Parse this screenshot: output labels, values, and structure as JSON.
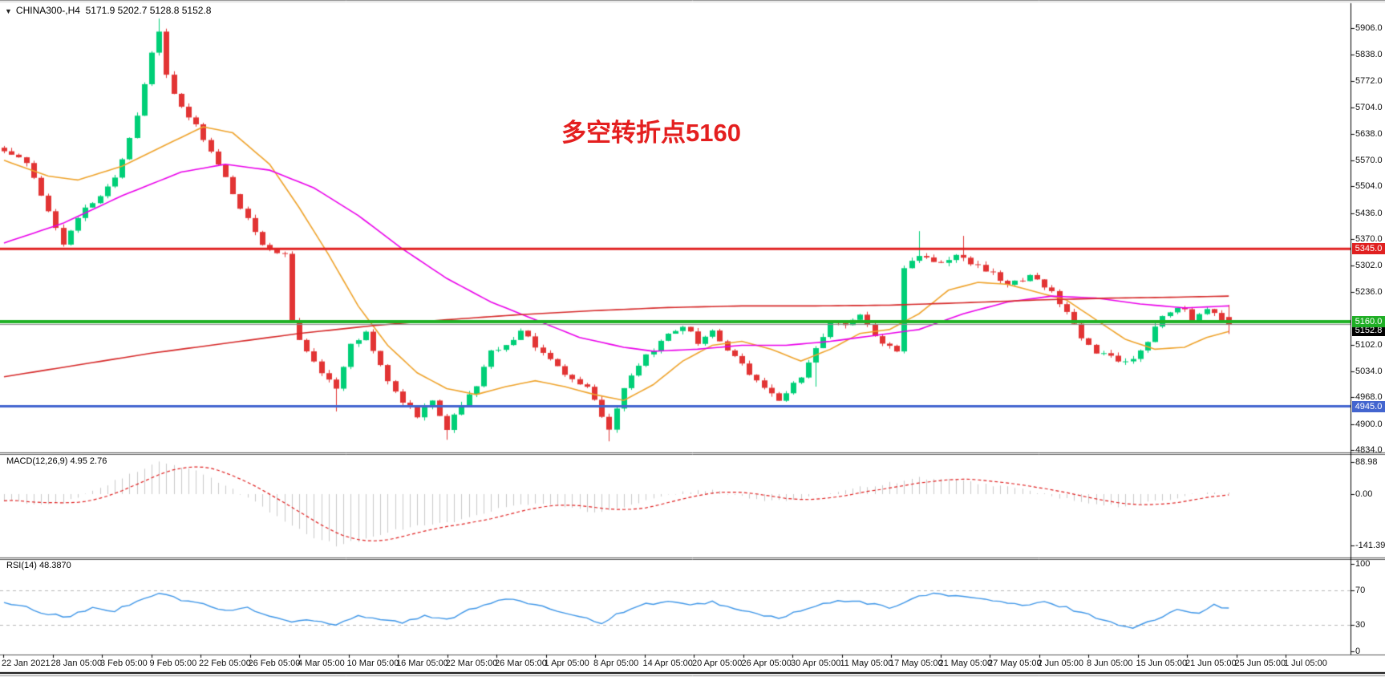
{
  "header": {
    "dropdown_icon": "▼",
    "symbol_title": "CHINA300-,H4",
    "ohlc_text": "5171.9 5202.7 5128.8 5152.8"
  },
  "annotation": {
    "text": "多空转折点5160",
    "color": "#e41f1f"
  },
  "pane_labels": {
    "macd_label": "MACD(12,26,9) 4.95 2.76",
    "rsi_label": "RSI(14) 48.3870"
  },
  "price_axis": {
    "ticks": [
      "5906.0",
      "5838.0",
      "5772.0",
      "5704.0",
      "5638.0",
      "5570.0",
      "5504.0",
      "5436.0",
      "5370.0",
      "5302.0",
      "5236.0",
      "5102.0",
      "5034.0",
      "4968.0",
      "4900.0",
      "4834.0"
    ],
    "boxes": [
      {
        "label": "5345.0",
        "price": 5345.0,
        "bg": "#e02020"
      },
      {
        "label": "5152.8",
        "price": 5152.8,
        "bg": "#000000"
      },
      {
        "label": "5160.0",
        "price": 5160.0,
        "bg": "#1fae25"
      },
      {
        "label": "4945.0",
        "price": 4945.0,
        "bg": "#4365cf"
      }
    ]
  },
  "macd_axis": {
    "ticks": [
      {
        "label": "88.98",
        "value": 88.98
      },
      {
        "label": "0.00",
        "value": 0
      },
      {
        "label": "-141.39",
        "value": -141.39
      }
    ]
  },
  "rsi_axis": {
    "ticks": [
      {
        "label": "100",
        "value": 100
      },
      {
        "label": "70",
        "value": 70
      },
      {
        "label": "30",
        "value": 30
      },
      {
        "label": "0",
        "value": 0
      }
    ]
  },
  "time_axis": {
    "labels": [
      "22 Jan 2021",
      "28 Jan 05:00",
      "3 Feb 05:00",
      "9 Feb 05:00",
      "22 Feb 05:00",
      "26 Feb 05:00",
      "4 Mar 05:00",
      "10 Mar 05:00",
      "16 Mar 05:00",
      "22 Mar 05:00",
      "26 Mar 05:00",
      "1 Apr 05:00",
      "8 Apr 05:00",
      "14 Apr 05:00",
      "20 Apr 05:00",
      "26 Apr 05:00",
      "30 Apr 05:00",
      "11 May 05:00",
      "17 May 05:00",
      "21 May 05:00",
      "27 May 05:00",
      "2 Jun 05:00",
      "8 Jun 05:00",
      "15 Jun 05:00",
      "21 Jun 05:00",
      "25 Jun 05:00",
      "1 Jul 05:00"
    ]
  },
  "chart_data": {
    "type": "candlestick",
    "symbol": "CHINA300-",
    "timeframe": "H4",
    "title": "CHINA300-,H4",
    "current_bar": {
      "open": 5171.9,
      "high": 5202.7,
      "low": 5128.8,
      "close": 5152.8
    },
    "bars_count": 167,
    "price_axis_top": 5906.0,
    "price_axis_bottom": 4834.0,
    "candle_colors": {
      "up": "#00cf77",
      "down": "#e23434"
    },
    "close_keyframes": [
      [
        0,
        5600
      ],
      [
        3,
        5560
      ],
      [
        5,
        5480
      ],
      [
        8,
        5360
      ],
      [
        10,
        5430
      ],
      [
        13,
        5480
      ],
      [
        15,
        5520
      ],
      [
        18,
        5680
      ],
      [
        20,
        5840
      ],
      [
        21,
        5900
      ],
      [
        22,
        5790
      ],
      [
        24,
        5700
      ],
      [
        26,
        5660
      ],
      [
        29,
        5560
      ],
      [
        32,
        5450
      ],
      [
        35,
        5360
      ],
      [
        38,
        5330
      ],
      [
        39,
        5160
      ],
      [
        41,
        5080
      ],
      [
        43,
        5030
      ],
      [
        45,
        4990
      ],
      [
        47,
        5100
      ],
      [
        49,
        5130
      ],
      [
        52,
        5010
      ],
      [
        54,
        4960
      ],
      [
        56,
        4920
      ],
      [
        58,
        4960
      ],
      [
        60,
        4880
      ],
      [
        61,
        4920
      ],
      [
        64,
        5000
      ],
      [
        66,
        5080
      ],
      [
        68,
        5100
      ],
      [
        70,
        5140
      ],
      [
        72,
        5100
      ],
      [
        74,
        5060
      ],
      [
        77,
        5010
      ],
      [
        79,
        4990
      ],
      [
        81,
        4920
      ],
      [
        82,
        4890
      ],
      [
        83,
        4940
      ],
      [
        85,
        5030
      ],
      [
        88,
        5090
      ],
      [
        90,
        5130
      ],
      [
        92,
        5150
      ],
      [
        94,
        5110
      ],
      [
        96,
        5140
      ],
      [
        98,
        5090
      ],
      [
        101,
        5030
      ],
      [
        103,
        4990
      ],
      [
        105,
        4960
      ],
      [
        108,
        5020
      ],
      [
        110,
        5090
      ],
      [
        112,
        5160
      ],
      [
        114,
        5150
      ],
      [
        116,
        5180
      ],
      [
        118,
        5120
      ],
      [
        121,
        5090
      ],
      [
        122,
        5300
      ],
      [
        124,
        5330
      ],
      [
        127,
        5310
      ],
      [
        129,
        5330
      ],
      [
        132,
        5300
      ],
      [
        134,
        5280
      ],
      [
        136,
        5250
      ],
      [
        139,
        5280
      ],
      [
        142,
        5240
      ],
      [
        144,
        5180
      ],
      [
        146,
        5120
      ],
      [
        148,
        5080
      ],
      [
        151,
        5060
      ],
      [
        153,
        5070
      ],
      [
        155,
        5110
      ],
      [
        157,
        5180
      ],
      [
        159,
        5200
      ],
      [
        161,
        5170
      ],
      [
        163,
        5190
      ],
      [
        166,
        5152.8
      ]
    ],
    "wick_events": [
      {
        "i": 21,
        "high": 5930
      },
      {
        "i": 45,
        "low": 4932
      },
      {
        "i": 60,
        "low": 4860
      },
      {
        "i": 82,
        "low": 4856
      },
      {
        "i": 110,
        "low": 4995
      },
      {
        "i": 124,
        "high": 5390
      },
      {
        "i": 130,
        "high": 5378
      }
    ],
    "h_lines": [
      {
        "price": 5345.0,
        "color": "#e02020",
        "width": 3
      },
      {
        "price": 5160.0,
        "color": "#1fb125",
        "width": 4
      },
      {
        "price": 5152.8,
        "color": "#8a8a8a",
        "width": 1
      },
      {
        "price": 4945.0,
        "color": "#4365cf",
        "width": 3
      }
    ],
    "moving_averages": [
      {
        "name": "fast-ma",
        "color": "#efa32b",
        "keyframes": [
          [
            0,
            5570
          ],
          [
            6,
            5530
          ],
          [
            10,
            5520
          ],
          [
            16,
            5555
          ],
          [
            22,
            5610
          ],
          [
            27,
            5655
          ],
          [
            31,
            5640
          ],
          [
            36,
            5560
          ],
          [
            40,
            5450
          ],
          [
            44,
            5330
          ],
          [
            48,
            5200
          ],
          [
            52,
            5100
          ],
          [
            56,
            5030
          ],
          [
            60,
            4990
          ],
          [
            64,
            4975
          ],
          [
            68,
            4995
          ],
          [
            72,
            5010
          ],
          [
            76,
            4995
          ],
          [
            80,
            4975
          ],
          [
            84,
            4960
          ],
          [
            88,
            5000
          ],
          [
            92,
            5060
          ],
          [
            96,
            5100
          ],
          [
            100,
            5110
          ],
          [
            104,
            5090
          ],
          [
            108,
            5060
          ],
          [
            112,
            5090
          ],
          [
            116,
            5130
          ],
          [
            120,
            5140
          ],
          [
            124,
            5180
          ],
          [
            128,
            5240
          ],
          [
            132,
            5260
          ],
          [
            136,
            5255
          ],
          [
            140,
            5235
          ],
          [
            144,
            5215
          ],
          [
            148,
            5165
          ],
          [
            152,
            5115
          ],
          [
            156,
            5090
          ],
          [
            160,
            5095
          ],
          [
            163,
            5120
          ],
          [
            166,
            5135
          ]
        ]
      },
      {
        "name": "medium-ma",
        "color": "#ea00ea",
        "keyframes": [
          [
            0,
            5360
          ],
          [
            8,
            5410
          ],
          [
            16,
            5480
          ],
          [
            24,
            5540
          ],
          [
            30,
            5560
          ],
          [
            36,
            5545
          ],
          [
            42,
            5500
          ],
          [
            48,
            5430
          ],
          [
            54,
            5345
          ],
          [
            60,
            5270
          ],
          [
            66,
            5210
          ],
          [
            72,
            5165
          ],
          [
            78,
            5120
          ],
          [
            84,
            5095
          ],
          [
            88,
            5085
          ],
          [
            94,
            5090
          ],
          [
            100,
            5100
          ],
          [
            106,
            5100
          ],
          [
            112,
            5110
          ],
          [
            118,
            5125
          ],
          [
            124,
            5140
          ],
          [
            130,
            5180
          ],
          [
            136,
            5210
          ],
          [
            142,
            5225
          ],
          [
            148,
            5220
          ],
          [
            154,
            5205
          ],
          [
            160,
            5195
          ],
          [
            166,
            5200
          ]
        ]
      },
      {
        "name": "slow-ma",
        "color": "#d62828",
        "keyframes": [
          [
            0,
            5020
          ],
          [
            10,
            5050
          ],
          [
            20,
            5080
          ],
          [
            30,
            5105
          ],
          [
            40,
            5130
          ],
          [
            50,
            5150
          ],
          [
            60,
            5165
          ],
          [
            70,
            5178
          ],
          [
            80,
            5188
          ],
          [
            90,
            5196
          ],
          [
            100,
            5200
          ],
          [
            110,
            5200
          ],
          [
            120,
            5202
          ],
          [
            130,
            5208
          ],
          [
            140,
            5215
          ],
          [
            150,
            5220
          ],
          [
            158,
            5222
          ],
          [
            166,
            5225
          ]
        ]
      }
    ],
    "macd": {
      "params": "12,26,9",
      "main_value": 4.95,
      "signal_value": 2.76,
      "axis_max": 88.98,
      "axis_min": -141.39,
      "histogram_color": "#c9c9c9",
      "signal_color": "#e02020",
      "main_keyframes": [
        [
          0,
          -15
        ],
        [
          4,
          -30
        ],
        [
          8,
          -25
        ],
        [
          12,
          10
        ],
        [
          16,
          45
        ],
        [
          19,
          70
        ],
        [
          21,
          88
        ],
        [
          24,
          75
        ],
        [
          27,
          55
        ],
        [
          30,
          25
        ],
        [
          33,
          -10
        ],
        [
          36,
          -50
        ],
        [
          39,
          -90
        ],
        [
          42,
          -120
        ],
        [
          45,
          -141
        ],
        [
          48,
          -130
        ],
        [
          52,
          -105
        ],
        [
          56,
          -85
        ],
        [
          60,
          -80
        ],
        [
          64,
          -60
        ],
        [
          68,
          -35
        ],
        [
          72,
          -25
        ],
        [
          76,
          -35
        ],
        [
          80,
          -50
        ],
        [
          84,
          -35
        ],
        [
          88,
          -10
        ],
        [
          92,
          5
        ],
        [
          96,
          10
        ],
        [
          100,
          -5
        ],
        [
          104,
          -20
        ],
        [
          108,
          -15
        ],
        [
          112,
          5
        ],
        [
          116,
          20
        ],
        [
          120,
          30
        ],
        [
          124,
          45
        ],
        [
          128,
          40
        ],
        [
          132,
          30
        ],
        [
          136,
          20
        ],
        [
          140,
          5
        ],
        [
          144,
          -15
        ],
        [
          148,
          -30
        ],
        [
          152,
          -35
        ],
        [
          156,
          -20
        ],
        [
          160,
          -5
        ],
        [
          163,
          3
        ],
        [
          166,
          5
        ]
      ]
    },
    "rsi": {
      "period": 14,
      "value": 48.387,
      "levels": [
        70,
        30
      ],
      "line_color": "#3e96e8",
      "keyframes": [
        [
          0,
          55
        ],
        [
          3,
          50
        ],
        [
          6,
          42
        ],
        [
          9,
          40
        ],
        [
          12,
          50
        ],
        [
          15,
          46
        ],
        [
          18,
          58
        ],
        [
          21,
          67
        ],
        [
          24,
          59
        ],
        [
          27,
          54
        ],
        [
          30,
          46
        ],
        [
          33,
          50
        ],
        [
          36,
          40
        ],
        [
          39,
          34
        ],
        [
          42,
          36
        ],
        [
          45,
          31
        ],
        [
          48,
          41
        ],
        [
          51,
          37
        ],
        [
          54,
          33
        ],
        [
          57,
          40
        ],
        [
          60,
          36
        ],
        [
          63,
          48
        ],
        [
          66,
          56
        ],
        [
          69,
          60
        ],
        [
          72,
          52
        ],
        [
          75,
          47
        ],
        [
          78,
          40
        ],
        [
          81,
          33
        ],
        [
          84,
          46
        ],
        [
          87,
          54
        ],
        [
          90,
          57
        ],
        [
          93,
          52
        ],
        [
          96,
          57
        ],
        [
          99,
          48
        ],
        [
          102,
          43
        ],
        [
          105,
          38
        ],
        [
          108,
          46
        ],
        [
          111,
          54
        ],
        [
          114,
          58
        ],
        [
          117,
          55
        ],
        [
          120,
          50
        ],
        [
          123,
          60
        ],
        [
          126,
          66
        ],
        [
          129,
          64
        ],
        [
          132,
          60
        ],
        [
          135,
          57
        ],
        [
          138,
          52
        ],
        [
          141,
          56
        ],
        [
          144,
          50
        ],
        [
          147,
          42
        ],
        [
          150,
          33
        ],
        [
          153,
          27
        ],
        [
          156,
          36
        ],
        [
          159,
          47
        ],
        [
          162,
          45
        ],
        [
          164,
          54
        ],
        [
          166,
          48.4
        ]
      ]
    }
  }
}
